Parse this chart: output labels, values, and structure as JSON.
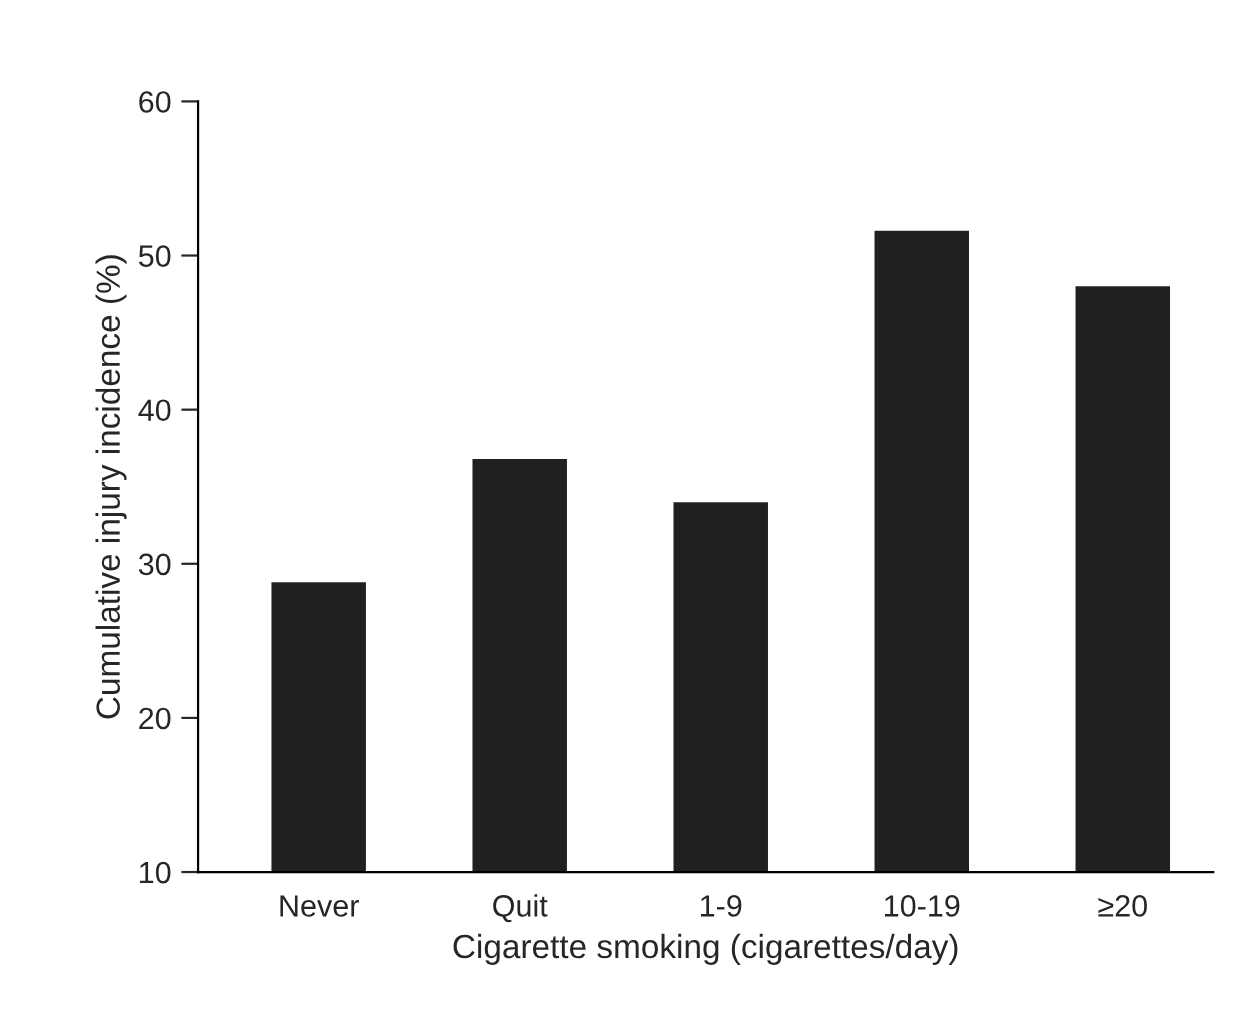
{
  "chart_data": {
    "type": "bar",
    "xlabel": "Cigarette smoking (cigarettes/day)",
    "ylabel": "Cumulative injury incidence (%)",
    "categories": [
      "Never",
      "Quit",
      "1-9",
      "10-19",
      "≥20"
    ],
    "values": [
      28.8,
      36.8,
      34.0,
      51.6,
      48.0
    ],
    "color": "#202020",
    "ylim": [
      10,
      60
    ],
    "yticks": [
      10,
      20,
      30,
      40,
      50,
      60
    ],
    "grid": false
  }
}
